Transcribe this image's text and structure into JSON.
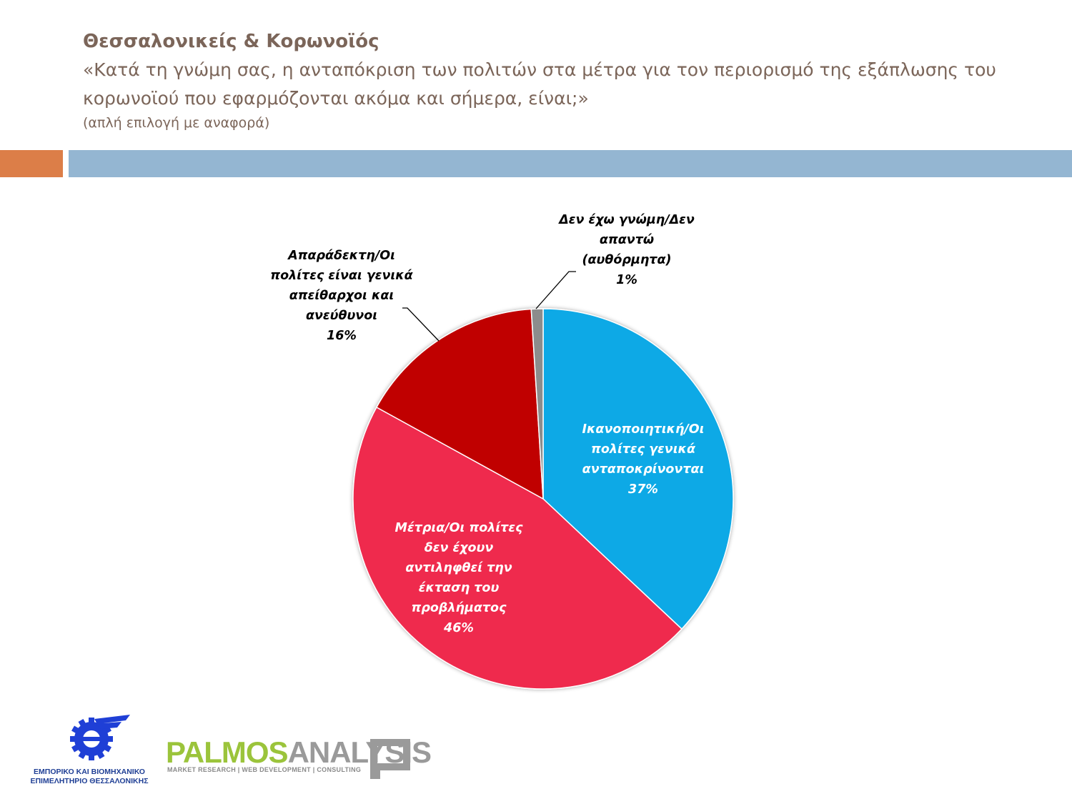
{
  "header": {
    "title": "Θεσσαλονικείς & Κορωνοϊός",
    "question": "«Κατά τη γνώμη σας, η ανταπόκριση των πολιτών στα μέτρα για τον περιορισμό της εξάπλωσης του κορωνοϊού που εφαρμόζονται ακόμα και σήμερα, είναι;»",
    "note": "(απλή επιλογή με αναφορά)"
  },
  "colors": {
    "accent_orange": "#dc7e48",
    "accent_blue": "#94b6d2",
    "header_text": "#7b6559"
  },
  "chart_data": {
    "type": "pie",
    "unit": "%",
    "slices": [
      {
        "label_lines": [
          "Ικανοποιητική/Οι",
          "πολίτες γενικά",
          "ανταποκρίνονται"
        ],
        "value": 37,
        "value_label": "37%",
        "color": "#08a9e6",
        "label_color": "#ffffff"
      },
      {
        "label_lines": [
          "Μέτρια/Οι πολίτες",
          "δεν έχουν",
          "αντιληφθεί την",
          "έκταση του",
          "προβλήματος"
        ],
        "value": 46,
        "value_label": "46%",
        "color": "#ef2b4e",
        "label_color": "#ffffff"
      },
      {
        "label_lines": [
          "Απαράδεκτη/Οι",
          "πολίτες είναι γενικά",
          "απείθαρχοι και",
          "ανεύθυνοι"
        ],
        "value": 16,
        "value_label": "16%",
        "color": "#c00505",
        "label_color": "#000000"
      },
      {
        "label_lines": [
          "Δεν έχω γνώμη/Δεν",
          "απαντώ",
          "(αυθόρμητα)"
        ],
        "value": 1,
        "value_label": "1%",
        "color": "#8c8c8c",
        "label_color": "#000000"
      }
    ]
  },
  "logos": {
    "ebeth": {
      "line1": "ΕΜΠΟΡΙΚΟ ΚΑΙ ΒΙΟΜΗΧΑΝΙΚΟ",
      "line2": "ΕΠΙΜΕΛΗΤΗΡΙΟ ΘΕΣΣΑΛΟΝΙΚΗΣ",
      "icon": "gear-wing-icon"
    },
    "palmos": {
      "word1": "PALMOS",
      "word2": "ANALYSIS",
      "tagline": "MARKET RESEARCH | WEB DEVELOPMENT | CONSULTING",
      "icon": "square-frame-icon"
    }
  }
}
